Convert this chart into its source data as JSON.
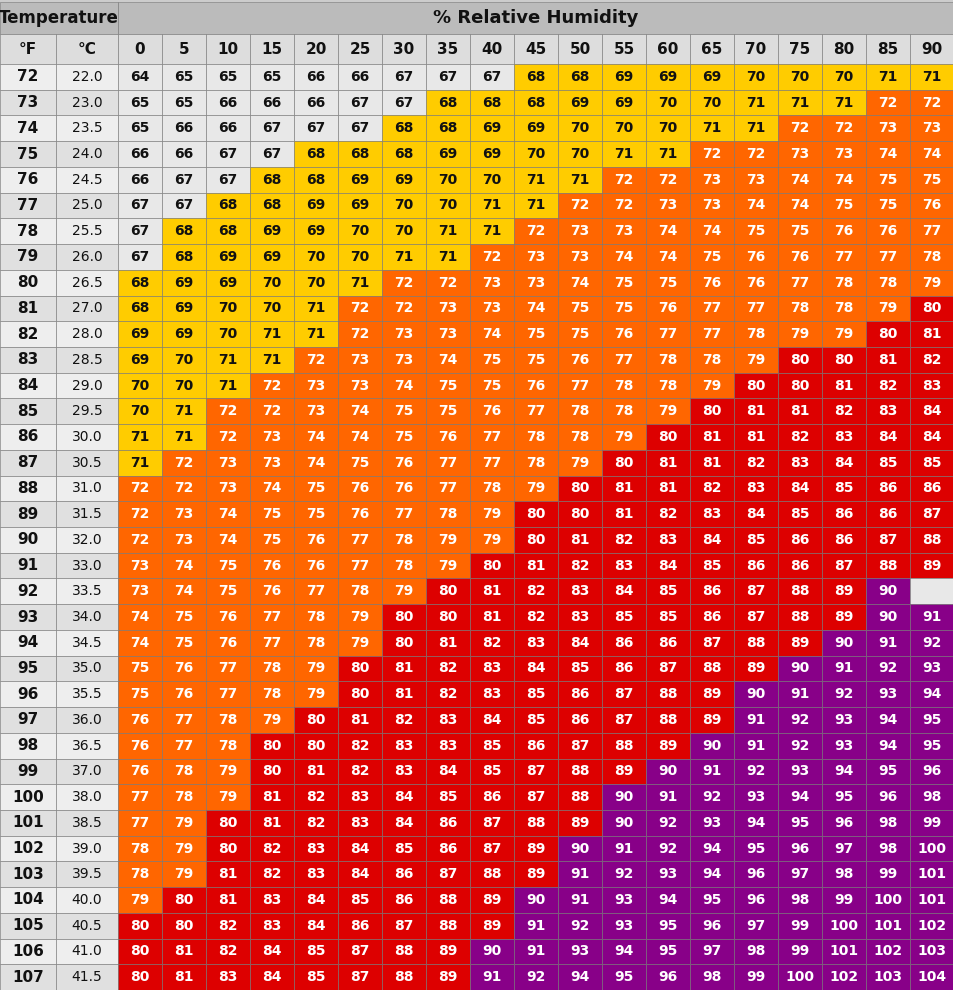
{
  "temp_f": [
    72,
    73,
    74,
    75,
    76,
    77,
    78,
    79,
    80,
    81,
    82,
    83,
    84,
    85,
    86,
    87,
    88,
    89,
    90,
    91,
    92,
    93,
    94,
    95,
    96,
    97,
    98,
    99,
    100,
    101,
    102,
    103,
    104,
    105,
    106,
    107
  ],
  "temp_c": [
    "22.0",
    "23.0",
    "23.5",
    "24.0",
    "24.5",
    "25.0",
    "25.5",
    "26.0",
    "26.5",
    "27.0",
    "28.0",
    "28.5",
    "29.0",
    "29.5",
    "30.0",
    "30.5",
    "31.0",
    "31.5",
    "32.0",
    "33.0",
    "33.5",
    "34.0",
    "34.5",
    "35.0",
    "35.5",
    "36.0",
    "36.5",
    "37.0",
    "38.0",
    "38.5",
    "39.0",
    "39.5",
    "40.0",
    "40.5",
    "41.0",
    "41.5"
  ],
  "humidity_cols": [
    0,
    5,
    10,
    15,
    20,
    25,
    30,
    35,
    40,
    45,
    50,
    55,
    60,
    65,
    70,
    75,
    80,
    85,
    90
  ],
  "thi_values": [
    [
      64,
      65,
      65,
      65,
      66,
      66,
      67,
      67,
      67,
      68,
      68,
      69,
      69,
      69,
      70,
      70,
      70,
      71,
      71
    ],
    [
      65,
      65,
      66,
      66,
      66,
      67,
      67,
      68,
      68,
      68,
      69,
      69,
      70,
      70,
      71,
      71,
      71,
      72,
      72
    ],
    [
      65,
      66,
      66,
      67,
      67,
      67,
      68,
      68,
      69,
      69,
      70,
      70,
      70,
      71,
      71,
      72,
      72,
      73,
      73
    ],
    [
      66,
      66,
      67,
      67,
      68,
      68,
      68,
      69,
      69,
      70,
      70,
      71,
      71,
      72,
      72,
      73,
      73,
      74,
      74
    ],
    [
      66,
      67,
      67,
      68,
      68,
      69,
      69,
      70,
      70,
      71,
      71,
      72,
      72,
      73,
      73,
      74,
      74,
      75,
      75
    ],
    [
      67,
      67,
      68,
      68,
      69,
      69,
      70,
      70,
      71,
      71,
      72,
      72,
      73,
      73,
      74,
      74,
      75,
      75,
      76
    ],
    [
      67,
      68,
      68,
      69,
      69,
      70,
      70,
      71,
      71,
      72,
      73,
      73,
      74,
      74,
      75,
      75,
      76,
      76,
      77
    ],
    [
      67,
      68,
      69,
      69,
      70,
      70,
      71,
      71,
      72,
      73,
      73,
      74,
      74,
      75,
      76,
      76,
      77,
      77,
      78
    ],
    [
      68,
      69,
      69,
      70,
      70,
      71,
      72,
      72,
      73,
      73,
      74,
      75,
      75,
      76,
      76,
      77,
      78,
      78,
      79
    ],
    [
      68,
      69,
      70,
      70,
      71,
      72,
      72,
      73,
      73,
      74,
      75,
      75,
      76,
      77,
      77,
      78,
      78,
      79,
      80
    ],
    [
      69,
      69,
      70,
      71,
      71,
      72,
      73,
      73,
      74,
      75,
      75,
      76,
      77,
      77,
      78,
      79,
      79,
      80,
      81
    ],
    [
      69,
      70,
      71,
      71,
      72,
      73,
      73,
      74,
      75,
      75,
      76,
      77,
      78,
      78,
      79,
      80,
      80,
      81,
      82
    ],
    [
      70,
      70,
      71,
      72,
      73,
      73,
      74,
      75,
      75,
      76,
      77,
      78,
      78,
      79,
      80,
      80,
      81,
      82,
      83
    ],
    [
      70,
      71,
      72,
      72,
      73,
      74,
      75,
      75,
      76,
      77,
      78,
      78,
      79,
      80,
      81,
      81,
      82,
      83,
      84
    ],
    [
      71,
      71,
      72,
      73,
      74,
      74,
      75,
      76,
      77,
      78,
      78,
      79,
      80,
      81,
      81,
      82,
      83,
      84,
      84
    ],
    [
      71,
      72,
      73,
      73,
      74,
      75,
      76,
      77,
      77,
      78,
      79,
      80,
      81,
      81,
      82,
      83,
      84,
      85,
      85
    ],
    [
      72,
      72,
      73,
      74,
      75,
      76,
      76,
      77,
      78,
      79,
      80,
      81,
      81,
      82,
      83,
      84,
      85,
      86,
      86
    ],
    [
      72,
      73,
      74,
      75,
      75,
      76,
      77,
      78,
      79,
      80,
      80,
      81,
      82,
      83,
      84,
      85,
      86,
      86,
      87
    ],
    [
      72,
      73,
      74,
      75,
      76,
      77,
      78,
      79,
      79,
      80,
      81,
      82,
      83,
      84,
      85,
      86,
      86,
      87,
      88
    ],
    [
      73,
      74,
      75,
      76,
      76,
      77,
      78,
      79,
      80,
      81,
      82,
      83,
      84,
      85,
      86,
      86,
      87,
      88,
      89
    ],
    [
      73,
      74,
      75,
      76,
      77,
      78,
      79,
      80,
      81,
      82,
      83,
      84,
      85,
      86,
      87,
      88,
      89,
      90,
      null
    ],
    [
      74,
      75,
      76,
      77,
      78,
      79,
      80,
      80,
      81,
      82,
      83,
      85,
      85,
      86,
      87,
      88,
      89,
      90,
      91
    ],
    [
      74,
      75,
      76,
      77,
      78,
      79,
      80,
      81,
      82,
      83,
      84,
      86,
      86,
      87,
      88,
      89,
      90,
      91,
      92
    ],
    [
      75,
      76,
      77,
      78,
      79,
      80,
      81,
      82,
      83,
      84,
      85,
      86,
      87,
      88,
      89,
      90,
      91,
      92,
      93
    ],
    [
      75,
      76,
      77,
      78,
      79,
      80,
      81,
      82,
      83,
      85,
      86,
      87,
      88,
      89,
      90,
      91,
      92,
      93,
      94
    ],
    [
      76,
      77,
      78,
      79,
      80,
      81,
      82,
      83,
      84,
      85,
      86,
      87,
      88,
      89,
      91,
      92,
      93,
      94,
      95
    ],
    [
      76,
      77,
      78,
      80,
      80,
      82,
      83,
      83,
      85,
      86,
      87,
      88,
      89,
      90,
      91,
      92,
      93,
      94,
      95
    ],
    [
      76,
      78,
      79,
      80,
      81,
      82,
      83,
      84,
      85,
      87,
      88,
      89,
      90,
      91,
      92,
      93,
      94,
      95,
      96
    ],
    [
      77,
      78,
      79,
      81,
      82,
      83,
      84,
      85,
      86,
      87,
      88,
      90,
      91,
      92,
      93,
      94,
      95,
      96,
      98
    ],
    [
      77,
      79,
      80,
      81,
      82,
      83,
      84,
      86,
      87,
      88,
      89,
      90,
      92,
      93,
      94,
      95,
      96,
      98,
      99
    ],
    [
      78,
      79,
      80,
      82,
      83,
      84,
      85,
      86,
      87,
      89,
      90,
      91,
      92,
      94,
      95,
      96,
      97,
      98,
      100
    ],
    [
      78,
      79,
      81,
      82,
      83,
      84,
      86,
      87,
      88,
      89,
      91,
      92,
      93,
      94,
      96,
      97,
      98,
      99,
      101
    ],
    [
      79,
      80,
      81,
      83,
      84,
      85,
      86,
      88,
      89,
      90,
      91,
      93,
      94,
      95,
      96,
      98,
      99,
      100,
      101
    ],
    [
      80,
      80,
      82,
      83,
      84,
      86,
      87,
      88,
      89,
      91,
      92,
      93,
      95,
      96,
      97,
      99,
      100,
      101,
      102
    ],
    [
      80,
      81,
      82,
      84,
      85,
      87,
      88,
      89,
      90,
      91,
      93,
      94,
      95,
      97,
      98,
      99,
      101,
      102,
      103
    ],
    [
      80,
      81,
      83,
      84,
      85,
      87,
      88,
      89,
      91,
      92,
      94,
      95,
      96,
      98,
      99,
      100,
      102,
      103,
      104
    ]
  ],
  "yellow_thresh": 68,
  "orange_thresh": 72,
  "red_thresh": 80,
  "purple_thresh": 90,
  "color_none_bg": "#E8E8E8",
  "color_yellow": "#FFCC00",
  "color_orange": "#FF6600",
  "color_red": "#DD0000",
  "color_purple": "#880088",
  "title_temp": "Temperature",
  "title_humidity": "% Relative Humidity",
  "header1_bg": "#BBBBBB",
  "header2_bg": "#DDDDDD",
  "row_bg_normal": "#EEEEEE",
  "row_bg_alt": "#E0E0E0"
}
